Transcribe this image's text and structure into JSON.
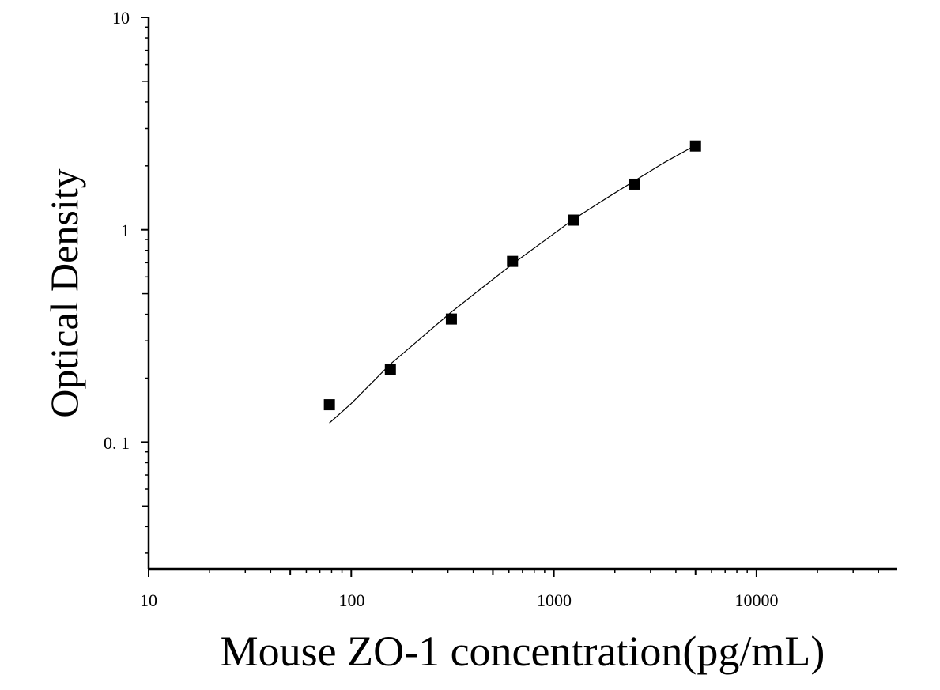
{
  "chart_data": {
    "type": "scatter",
    "title": "",
    "xlabel": "Mouse ZO-1 concentration(pg/mL)",
    "ylabel": "Optical Density",
    "x_scale": "log",
    "y_scale": "log",
    "xlim": [
      10,
      50000
    ],
    "ylim": [
      0.025,
      10
    ],
    "x_tick_labels": [
      "10",
      "100",
      "1000",
      "10000"
    ],
    "y_tick_labels": [
      "0. 1",
      "1",
      "10"
    ],
    "grid": false,
    "legend": "none",
    "marker_color": "#000000",
    "curve_color": "#000000",
    "series": [
      {
        "points": [
          {
            "x": 78,
            "y": 0.15
          },
          {
            "x": 156,
            "y": 0.22
          },
          {
            "x": 312,
            "y": 0.38
          },
          {
            "x": 625,
            "y": 0.71
          },
          {
            "x": 1250,
            "y": 1.11
          },
          {
            "x": 2500,
            "y": 1.64
          },
          {
            "x": 5000,
            "y": 2.48
          }
        ]
      }
    ],
    "fit_curve": {
      "type": "smooth fit",
      "points": [
        {
          "x": 78,
          "y": 0.123
        },
        {
          "x": 100,
          "y": 0.152
        },
        {
          "x": 156,
          "y": 0.233
        },
        {
          "x": 200,
          "y": 0.285
        },
        {
          "x": 312,
          "y": 0.41
        },
        {
          "x": 450,
          "y": 0.54
        },
        {
          "x": 625,
          "y": 0.69
        },
        {
          "x": 900,
          "y": 0.89
        },
        {
          "x": 1250,
          "y": 1.12
        },
        {
          "x": 1800,
          "y": 1.4
        },
        {
          "x": 2500,
          "y": 1.7
        },
        {
          "x": 3500,
          "y": 2.07
        },
        {
          "x": 5000,
          "y": 2.5
        }
      ]
    }
  }
}
